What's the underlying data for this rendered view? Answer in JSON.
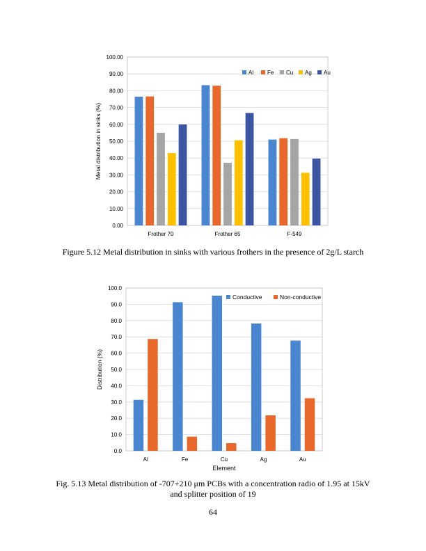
{
  "chart_data": [
    {
      "type": "bar",
      "title": "",
      "xlabel": "",
      "ylabel": "Metal distribution in sinks (%)",
      "ylim": [
        0,
        100
      ],
      "ytick_step": 10,
      "ytick_labels": [
        "0.00",
        "10.00",
        "20.00",
        "30.00",
        "40.00",
        "50.00",
        "60.00",
        "70.00",
        "80.00",
        "90.00",
        "100.00"
      ],
      "grid": true,
      "legend_position": "top-right",
      "categories": [
        "Frother 70",
        "Frother 65",
        "F-549"
      ],
      "series": [
        {
          "name": "Al",
          "color": "#4a86cf",
          "values": [
            76.5,
            83.3,
            51.0
          ]
        },
        {
          "name": "Fe",
          "color": "#e8672a",
          "values": [
            76.6,
            83.0,
            51.8
          ]
        },
        {
          "name": "Cu",
          "color": "#a5a5a5",
          "values": [
            55.0,
            37.2,
            51.3
          ]
        },
        {
          "name": "Ag",
          "color": "#ffc000",
          "values": [
            43.0,
            50.6,
            31.3
          ]
        },
        {
          "name": "Au",
          "color": "#3b55a3",
          "values": [
            60.0,
            66.8,
            39.7
          ]
        }
      ]
    },
    {
      "type": "bar",
      "title": "",
      "xlabel": "Element",
      "ylabel": "Distribution (%)",
      "ylim": [
        0,
        100
      ],
      "ytick_step": 10,
      "ytick_labels": [
        "0.0",
        "10.0",
        "20.0",
        "30.0",
        "40.0",
        "50.0",
        "60.0",
        "70.0",
        "80.0",
        "90.0",
        "100.0"
      ],
      "grid": true,
      "legend_position": "top-right",
      "categories": [
        "Al",
        "Fe",
        "Cu",
        "Ag",
        "Au"
      ],
      "series": [
        {
          "name": "Conductive",
          "color": "#4a86cf",
          "values": [
            31.3,
            91.3,
            95.3,
            78.2,
            67.7
          ]
        },
        {
          "name": "Non-conductive",
          "color": "#e8672a",
          "values": [
            68.7,
            8.7,
            4.7,
            21.8,
            32.3
          ]
        }
      ]
    }
  ],
  "captions": {
    "figure_5_12": "Figure 5.12 Metal distribution in sinks with various frothers in the presence of 2g/L starch",
    "figure_5_13_line1": "Fig. 5.13 Metal distribution of -707+210 μm PCBs with a concentration radio of 1.95 at 15kV",
    "figure_5_13_line2": "and splitter position of 19"
  },
  "page_number": "64"
}
